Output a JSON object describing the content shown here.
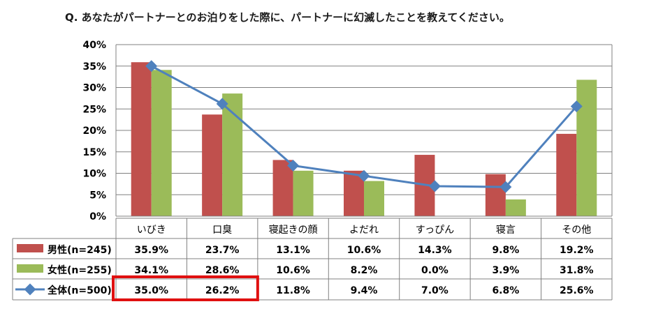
{
  "title": "Q. あなたがパートナーとのお泊りをした際に、パートナーに幻滅したことを教えてください。",
  "colors": {
    "male": "#C0504D",
    "female": "#9BBB59",
    "total": "#4F81BD",
    "highlight": "#E01010",
    "grid": "#808080"
  },
  "chart_data": {
    "type": "bar",
    "title": "Q. あなたがパートナーとのお泊りをした際に、パートナーに幻滅したことを教えてください。",
    "categories": [
      "いびき",
      "口臭",
      "寝起きの顔",
      "よだれ",
      "すっぴん",
      "寝言",
      "その他"
    ],
    "ylim": [
      0,
      40
    ],
    "yticks": [
      "0%",
      "5%",
      "10%",
      "15%",
      "20%",
      "25%",
      "30%",
      "35%",
      "40%"
    ],
    "grid": true,
    "series": [
      {
        "name": "男性(n=245)",
        "kind": "bar",
        "values": [
          35.9,
          23.7,
          13.1,
          10.6,
          14.3,
          9.8,
          19.2
        ],
        "labels": [
          "35.9%",
          "23.7%",
          "13.1%",
          "10.6%",
          "14.3%",
          "9.8%",
          "19.2%"
        ]
      },
      {
        "name": "女性(n=255)",
        "kind": "bar",
        "values": [
          34.1,
          28.6,
          10.6,
          8.2,
          0.0,
          3.9,
          31.8
        ],
        "labels": [
          "34.1%",
          "28.6%",
          "10.6%",
          "8.2%",
          "0.0%",
          "3.9%",
          "31.8%"
        ]
      },
      {
        "name": "全体(n=500)",
        "kind": "line",
        "values": [
          35.0,
          26.2,
          11.8,
          9.4,
          7.0,
          6.8,
          25.6
        ],
        "labels": [
          "35.0%",
          "26.2%",
          "11.8%",
          "9.4%",
          "7.0%",
          "6.8%",
          "25.6%"
        ]
      }
    ],
    "highlight": {
      "row": "全体(n=500)",
      "categories": [
        "いびき",
        "口臭"
      ]
    }
  }
}
